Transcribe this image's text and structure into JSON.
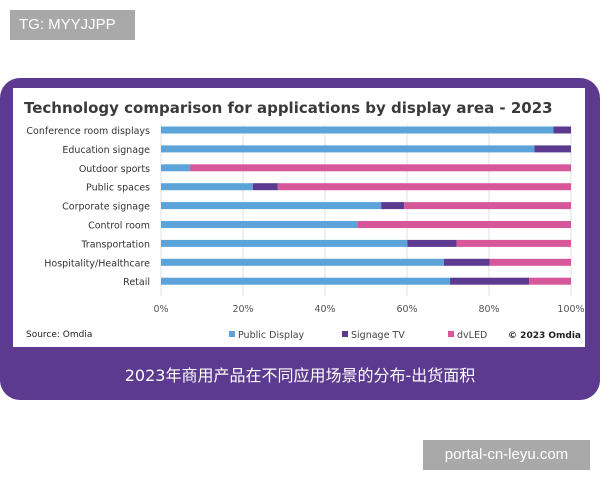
{
  "header_tag": "TG: MYYJJPP",
  "caption": "2023年商用产品在不同应用场景的分布-出货面积",
  "watermark": "portal-cn-leyu.com",
  "chart_data": {
    "type": "bar",
    "orientation": "horizontal",
    "stacked": "100%",
    "title": "Technology comparison for applications by display area -  2023",
    "categories": [
      "Conference room displays",
      "Education signage",
      "Outdoor sports",
      "Public spaces",
      "Corporate signage",
      "Control room",
      "Transportation",
      "Hospitality/Healthcare",
      "Retail"
    ],
    "series": [
      {
        "name": "Public Display",
        "color": "#5ba3d9",
        "values": [
          95.7,
          91.1,
          7.0,
          22.4,
          53.7,
          47.9,
          60.1,
          69.0,
          70.5
        ]
      },
      {
        "name": "Signage TV",
        "color": "#5c3a8f",
        "values": [
          4.3,
          8.9,
          0,
          6.1,
          5.6,
          0,
          12.0,
          11.2,
          19.3
        ]
      },
      {
        "name": "dvLED",
        "color": "#d6579a",
        "values": [
          0,
          0,
          93.0,
          71.5,
          40.7,
          52.1,
          27.9,
          19.8,
          10.2
        ]
      }
    ],
    "xticks": [
      "0%",
      "20%",
      "40%",
      "60%",
      "80%",
      "100%"
    ],
    "xlim": [
      0,
      100
    ],
    "grid": true,
    "legend": "bottom",
    "source": "Source: Omdia",
    "copyright": "© 2023 Omdia"
  }
}
